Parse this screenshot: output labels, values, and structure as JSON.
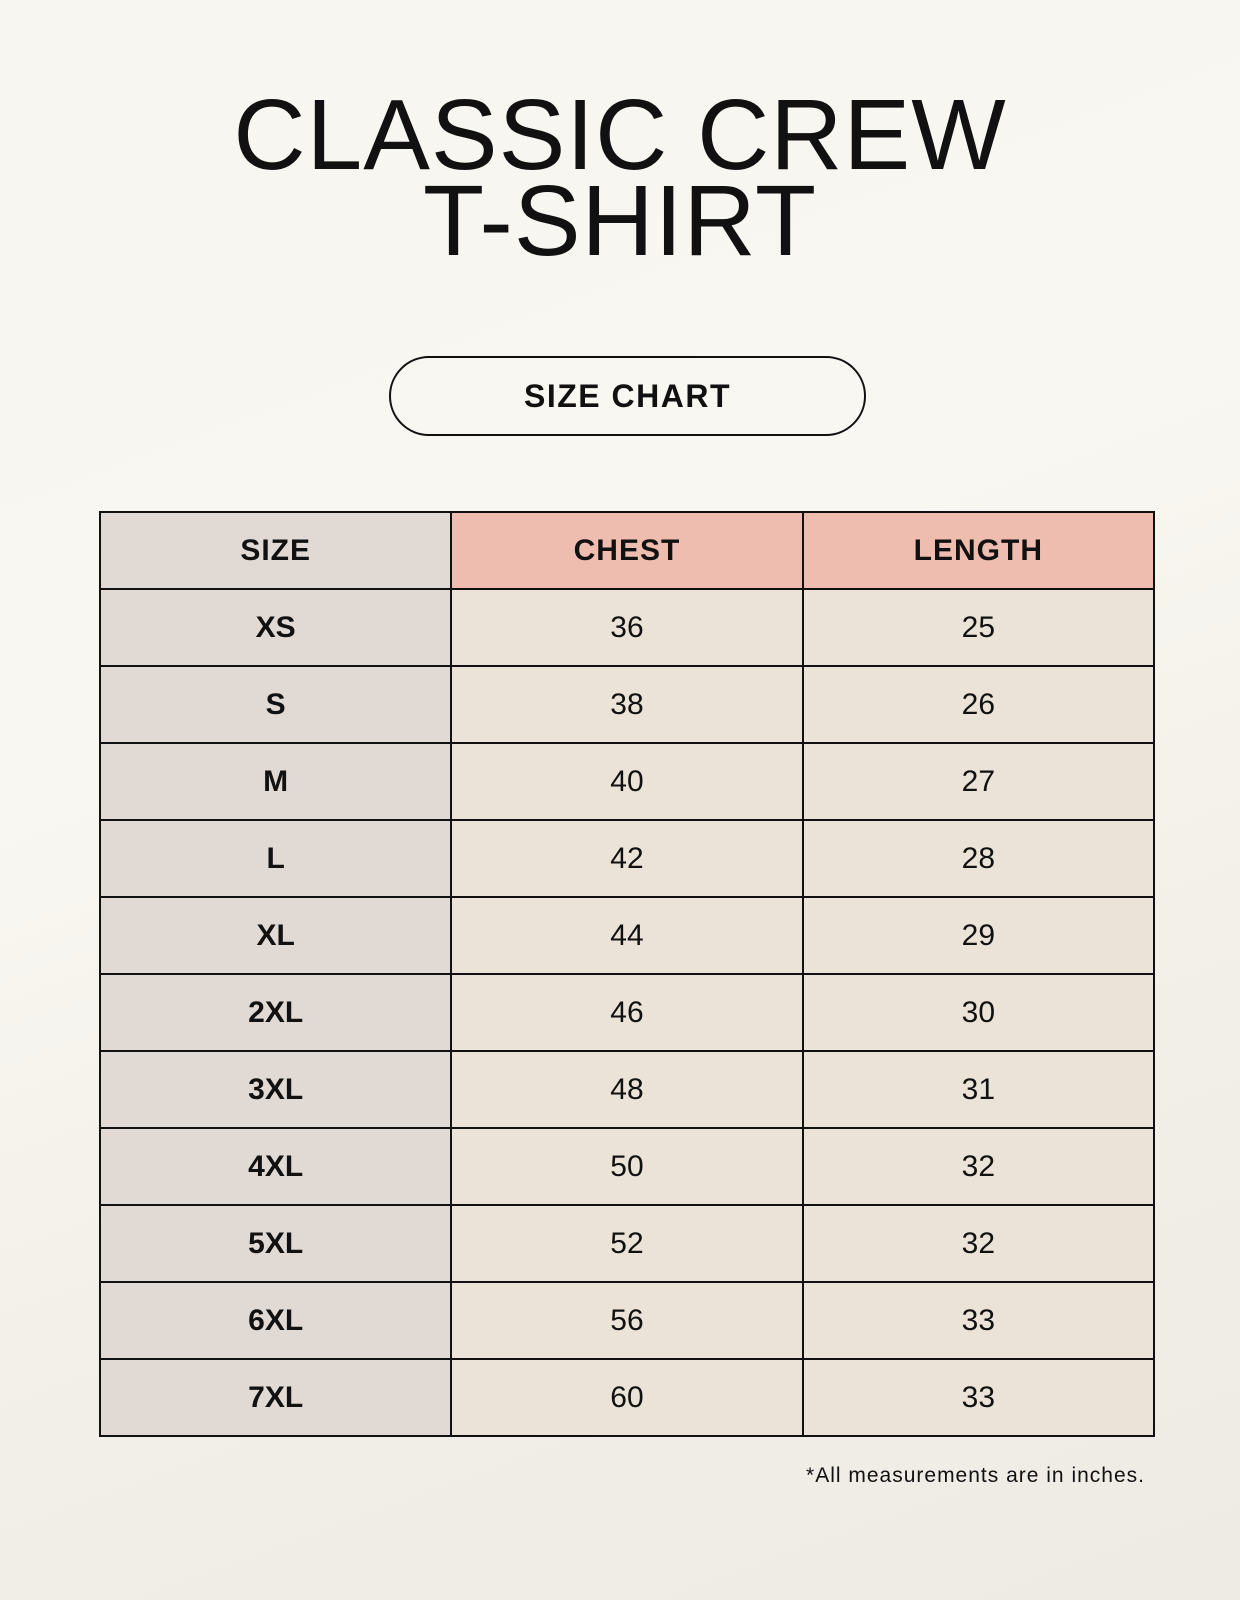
{
  "title": {
    "line1": "CLASSIC CREW",
    "line2": "T-SHIRT"
  },
  "badge": "SIZE CHART",
  "table": {
    "headers": [
      "SIZE",
      "CHEST",
      "LENGTH"
    ],
    "rows": [
      [
        "XS",
        "36",
        "25"
      ],
      [
        "S",
        "38",
        "26"
      ],
      [
        "M",
        "40",
        "27"
      ],
      [
        "L",
        "42",
        "28"
      ],
      [
        "XL",
        "44",
        "29"
      ],
      [
        "2XL",
        "46",
        "30"
      ],
      [
        "3XL",
        "48",
        "31"
      ],
      [
        "4XL",
        "50",
        "32"
      ],
      [
        "5XL",
        "52",
        "32"
      ],
      [
        "6XL",
        "56",
        "33"
      ],
      [
        "7XL",
        "60",
        "33"
      ]
    ]
  },
  "footnote": "*All measurements are in inches.",
  "colors": {
    "size_column": "#e1d9d3",
    "header_accent": "#eebdb0",
    "value_cells": "#ebe3d8"
  }
}
